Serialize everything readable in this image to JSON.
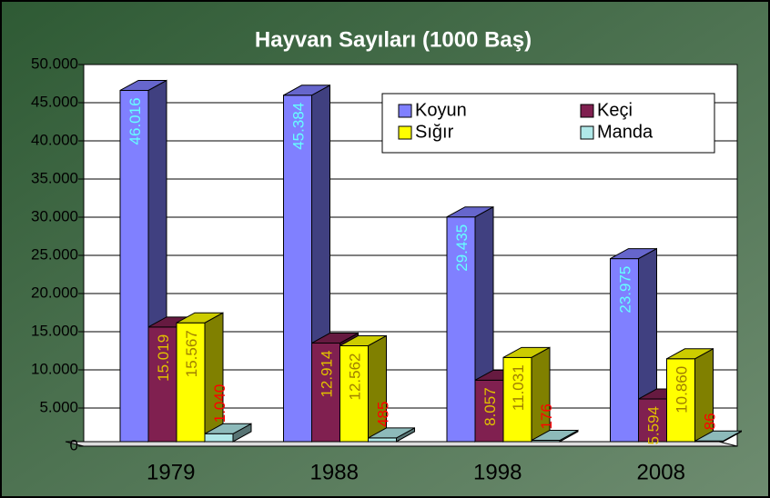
{
  "chart_data": {
    "type": "bar3d",
    "title": "Hayvan Sayıları (1000 Baş)",
    "categories": [
      "1979",
      "1988",
      "1998",
      "2008"
    ],
    "series": [
      {
        "name": "Koyun",
        "color": "#8080ff",
        "values": [
          46016,
          45384,
          29435,
          23975
        ],
        "value_labels": [
          "46.016",
          "45.384",
          "29.435",
          "23.975"
        ]
      },
      {
        "name": "Keçi",
        "color": "#802050",
        "values": [
          15019,
          12914,
          8057,
          5594
        ],
        "value_labels": [
          "15.019",
          "12.914",
          "8.057",
          "5.594"
        ]
      },
      {
        "name": "Sığır",
        "color": "#ffff00",
        "values": [
          15567,
          12562,
          11031,
          10860
        ],
        "value_labels": [
          "15.567",
          "12.562",
          "11.031",
          "10.860"
        ]
      },
      {
        "name": "Manda",
        "color": "#b0e8e8",
        "values": [
          1040,
          485,
          176,
          86
        ],
        "value_labels": [
          "1.040",
          "485",
          "176",
          "86"
        ]
      }
    ],
    "ylim": [
      0,
      50000
    ],
    "yticks": [
      0,
      {
        "value": 5000,
        "label": "5.000"
      },
      {
        "value": 10000,
        "label": "10.000"
      },
      {
        "value": 15000,
        "label": "15.000"
      },
      {
        "value": 20000,
        "label": "20.000"
      },
      {
        "value": 25000,
        "label": "25.000"
      },
      {
        "value": 30000,
        "label": "30.000"
      },
      {
        "value": 35000,
        "label": "35.000"
      },
      {
        "value": 40000,
        "label": "40.000"
      },
      {
        "value": 45000,
        "label": "45.000"
      },
      {
        "value": 50000,
        "label": "50.000"
      }
    ],
    "grid": true
  }
}
